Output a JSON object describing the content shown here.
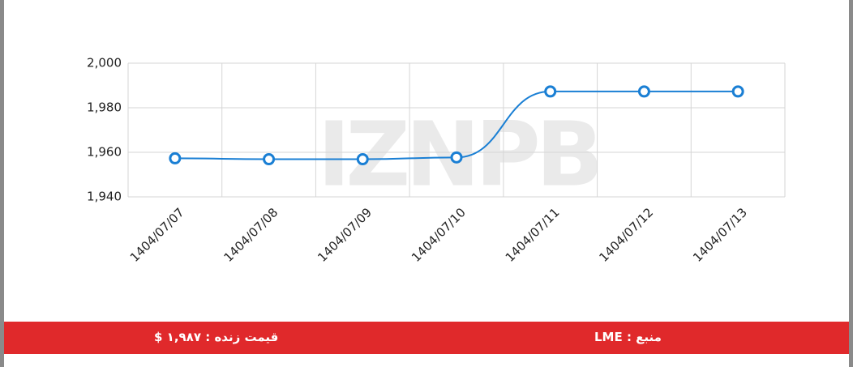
{
  "chart_data": {
    "type": "line",
    "categories": [
      "1404/07/07",
      "1404/07/08",
      "1404/07/09",
      "1404/07/10",
      "1404/07/11",
      "1404/07/12",
      "1404/07/13"
    ],
    "series": [
      {
        "name": "LME",
        "color": "#1a7fd4",
        "values": [
          1957.3,
          1956.9,
          1956.9,
          1957.7,
          1987.3,
          1987.3,
          1987.3
        ]
      }
    ],
    "ylim": [
      1940,
      2000
    ],
    "yticks": [
      {
        "value": 1940,
        "label": "1,940"
      },
      {
        "value": 1960,
        "label": "1,960"
      },
      {
        "value": 1980,
        "label": "1,980"
      },
      {
        "value": 2000,
        "label": "2,000"
      }
    ],
    "grid": true,
    "watermark": "IZNPB"
  },
  "footer": {
    "live_price": "قیمت زنده : ۱,۹۸۷ $",
    "source": "منبع : LME"
  }
}
